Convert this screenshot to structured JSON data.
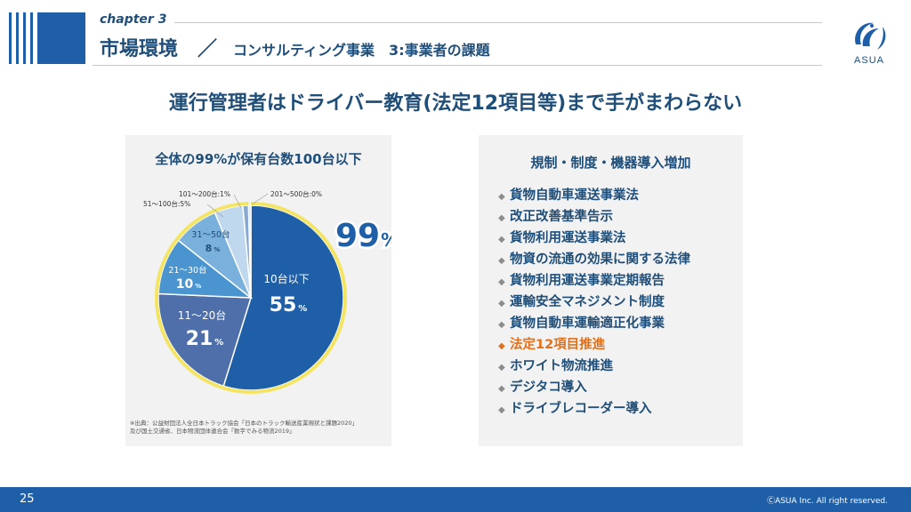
{
  "header": {
    "chapter": "chapter 3",
    "title": "市場環境　／",
    "subtitle": "コンサルティング事業　3:事業者の課題",
    "logo_text": "ASUA"
  },
  "headline": "運行管理者はドライバー教育(法定12項目等)まで手がまわらない",
  "chart_panel": {
    "source_line1": "※出典：公益財団法人全日本トラック協会「日本のトラック輸送産業現状と課題2020」",
    "source_line2": "及び国土交通省、日本物流団体連合会「数字でみる物流2019」"
  },
  "chart_data": {
    "type": "pie",
    "title": "全体の99%が保有台数100台以下",
    "callout": "99",
    "callout_unit": "%",
    "slices": [
      {
        "label": "10台以下",
        "value": 55,
        "display": "55",
        "color": "#1f5fa8"
      },
      {
        "label": "11～20台",
        "value": 21,
        "display": "21",
        "color": "#4f6fab"
      },
      {
        "label": "21～30台",
        "value": 10,
        "display": "10",
        "color": "#4a95cf"
      },
      {
        "label": "31～50台",
        "value": 8,
        "display": "8",
        "color": "#7ab0dc"
      },
      {
        "label": "51～100台:5%",
        "value": 5,
        "color": "#bfd8ee"
      },
      {
        "label": "101～200台:1%",
        "value": 1,
        "color": "#8aa9cf"
      },
      {
        "label": "201～500台:0%",
        "value": 0.4,
        "color": "#c9d6e8"
      }
    ],
    "highlight_color": "#f4e464"
  },
  "right_panel": {
    "title": "規制・制度・機器導入増加",
    "bullet": "◆",
    "items": [
      {
        "text": "貨物自動車運送事業法",
        "highlight": false
      },
      {
        "text": "改正改善基準告示",
        "highlight": false
      },
      {
        "text": "貨物利用運送事業法",
        "highlight": false
      },
      {
        "text": "物資の流通の効果に関する法律",
        "highlight": false
      },
      {
        "text": "貨物利用運送事業定期報告",
        "highlight": false
      },
      {
        "text": "運輸安全マネジメント制度",
        "highlight": false
      },
      {
        "text": "貨物自動車運輸適正化事業",
        "highlight": false
      },
      {
        "text": "法定12項目推進",
        "highlight": true
      },
      {
        "text": "ホワイト物流推進",
        "highlight": false
      },
      {
        "text": "デジタコ導入",
        "highlight": false
      },
      {
        "text": "ドライブレコーダー導入",
        "highlight": false
      }
    ],
    "accent_color": "#e2701a"
  },
  "footer": {
    "page": "25",
    "copyright": "ⒸASUA Inc. All right reserved."
  }
}
